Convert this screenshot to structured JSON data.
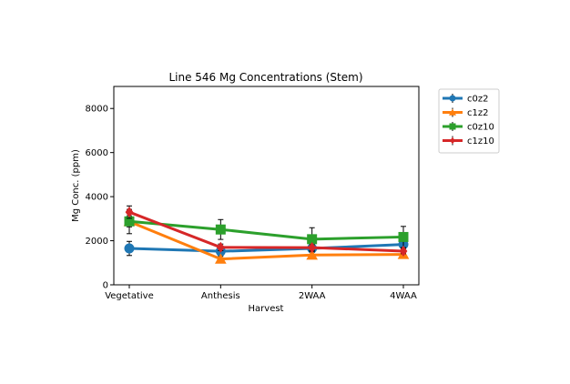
{
  "chart_data": {
    "type": "line",
    "title": "Line 546 Mg Concentrations (Stem)",
    "xlabel": "Harvest",
    "ylabel": "Mg Conc. (ppm)",
    "categories": [
      "Vegetative",
      "Anthesis",
      "2WAA",
      "4WAA"
    ],
    "ylim": [
      0,
      9000
    ],
    "yticks": [
      0,
      2000,
      4000,
      6000,
      8000
    ],
    "grid": false,
    "legend_position": "outside-right",
    "series": [
      {
        "name": "c0z2",
        "color": "#1f77b4",
        "marker": "circle",
        "values": [
          1650,
          1520,
          1650,
          1830
        ],
        "errors": [
          320,
          180,
          180,
          150
        ]
      },
      {
        "name": "c1z2",
        "color": "#ff7f0e",
        "marker": "triangle",
        "values": [
          2870,
          1170,
          1350,
          1380
        ],
        "errors": [
          550,
          120,
          150,
          130
        ]
      },
      {
        "name": "c0z10",
        "color": "#2ca02c",
        "marker": "square",
        "values": [
          2880,
          2510,
          2070,
          2170
        ],
        "errors": [
          250,
          450,
          520,
          480
        ]
      },
      {
        "name": "c1z10",
        "color": "#d62728",
        "marker": "diamond",
        "values": [
          3300,
          1700,
          1690,
          1530
        ],
        "errors": [
          280,
          150,
          130,
          120
        ]
      }
    ]
  }
}
